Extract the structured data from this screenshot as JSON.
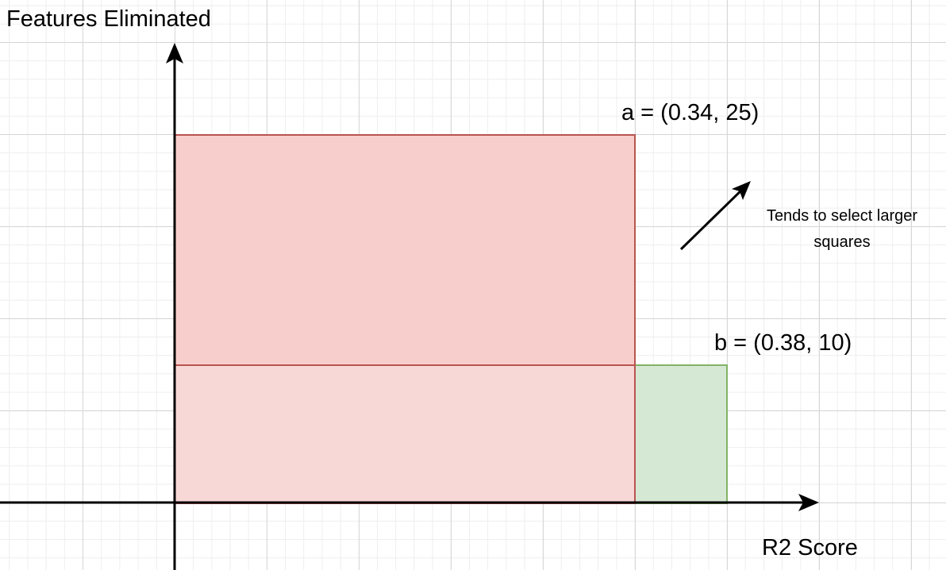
{
  "axes": {
    "y_label": "Features Eliminated",
    "x_label": "R2 Score"
  },
  "points": {
    "a": {
      "label": "a = (0.34, 25)",
      "x": 0.34,
      "y": 25
    },
    "b": {
      "label": "b = (0.38, 10)",
      "x": 0.38,
      "y": 10
    }
  },
  "annotation": {
    "line1": "Tends to select larger",
    "line2": "squares"
  },
  "colors": {
    "red_fill_top": "#f8cecc",
    "red_fill_bottom": "#f8d8d6",
    "red_stroke": "#b85450",
    "green_fill": "#d5e8d4",
    "green_stroke": "#82b366",
    "axis": "#000000"
  }
}
